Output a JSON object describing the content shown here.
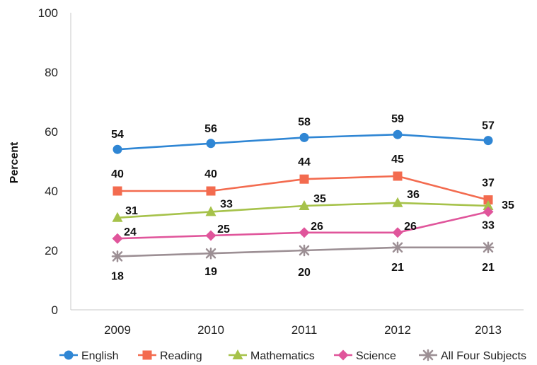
{
  "chart_data": {
    "type": "line",
    "title": "",
    "xlabel": "",
    "ylabel": "Percent",
    "categories": [
      "2009",
      "2010",
      "2011",
      "2012",
      "2013"
    ],
    "ylim": [
      0,
      100
    ],
    "yticks": [
      "0",
      "20",
      "40",
      "60",
      "80",
      "100"
    ],
    "grid": false,
    "legend_position": "bottom",
    "series": [
      {
        "name": "English",
        "values": [
          54,
          56,
          58,
          59,
          57
        ],
        "color": "#2f86d4",
        "marker": "circle"
      },
      {
        "name": "Reading",
        "values": [
          40,
          40,
          44,
          45,
          37
        ],
        "color": "#f36b4f",
        "marker": "square"
      },
      {
        "name": "Mathematics",
        "values": [
          31,
          33,
          35,
          36,
          35
        ],
        "color": "#a6c24a",
        "marker": "triangle"
      },
      {
        "name": "Science",
        "values": [
          24,
          25,
          26,
          26,
          33
        ],
        "color": "#e0559b",
        "marker": "diamond"
      },
      {
        "name": "All Four Subjects",
        "values": [
          18,
          19,
          20,
          21,
          21
        ],
        "color": "#9c8f94",
        "marker": "star"
      }
    ]
  }
}
